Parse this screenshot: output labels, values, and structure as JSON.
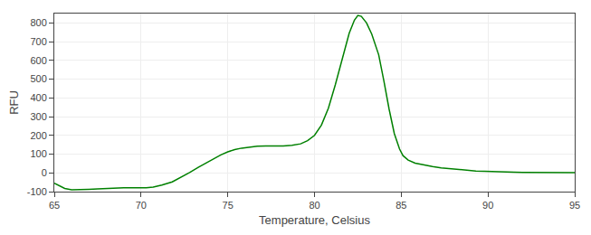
{
  "chart_data": {
    "type": "line",
    "xlabel": "Temperature, Celsius",
    "ylabel": "RFU",
    "color": "#008000",
    "xlim": [
      65,
      95
    ],
    "ylim": [
      -100,
      850
    ],
    "xticks": [
      65,
      70,
      75,
      80,
      85,
      90,
      95
    ],
    "yticks": [
      -100,
      0,
      100,
      200,
      300,
      400,
      500,
      600,
      700,
      800
    ],
    "grid": true,
    "x": [
      65.0,
      65.3,
      65.6,
      66.0,
      66.5,
      67.0,
      67.5,
      68.0,
      68.5,
      69.0,
      69.5,
      70.0,
      70.3,
      70.7,
      71.2,
      71.8,
      72.3,
      72.8,
      73.3,
      73.8,
      74.2,
      74.6,
      75.0,
      75.4,
      75.8,
      76.2,
      76.7,
      77.2,
      77.7,
      78.2,
      78.7,
      79.2,
      79.6,
      80.0,
      80.4,
      80.8,
      81.2,
      81.6,
      82.0,
      82.3,
      82.5,
      82.7,
      83.0,
      83.3,
      83.7,
      84.0,
      84.3,
      84.6,
      84.9,
      85.1,
      85.4,
      85.8,
      86.3,
      86.8,
      87.3,
      87.8,
      88.3,
      88.8,
      89.3,
      89.8,
      90.3,
      90.8,
      91.5,
      92.0,
      92.8,
      93.5,
      94.0,
      94.5,
      95.0
    ],
    "values": [
      -55,
      -70,
      -83,
      -90,
      -90,
      -88,
      -86,
      -83,
      -81,
      -80,
      -80,
      -81,
      -80,
      -76,
      -65,
      -48,
      -25,
      2,
      30,
      55,
      78,
      96,
      112,
      124,
      132,
      138,
      142,
      143,
      143,
      144,
      147,
      155,
      172,
      200,
      255,
      345,
      470,
      610,
      745,
      815,
      840,
      835,
      800,
      740,
      630,
      490,
      340,
      210,
      128,
      92,
      68,
      52,
      42,
      34,
      27,
      22,
      17,
      13,
      10,
      8,
      6,
      5,
      4,
      3,
      2,
      2,
      1,
      1,
      1
    ]
  }
}
